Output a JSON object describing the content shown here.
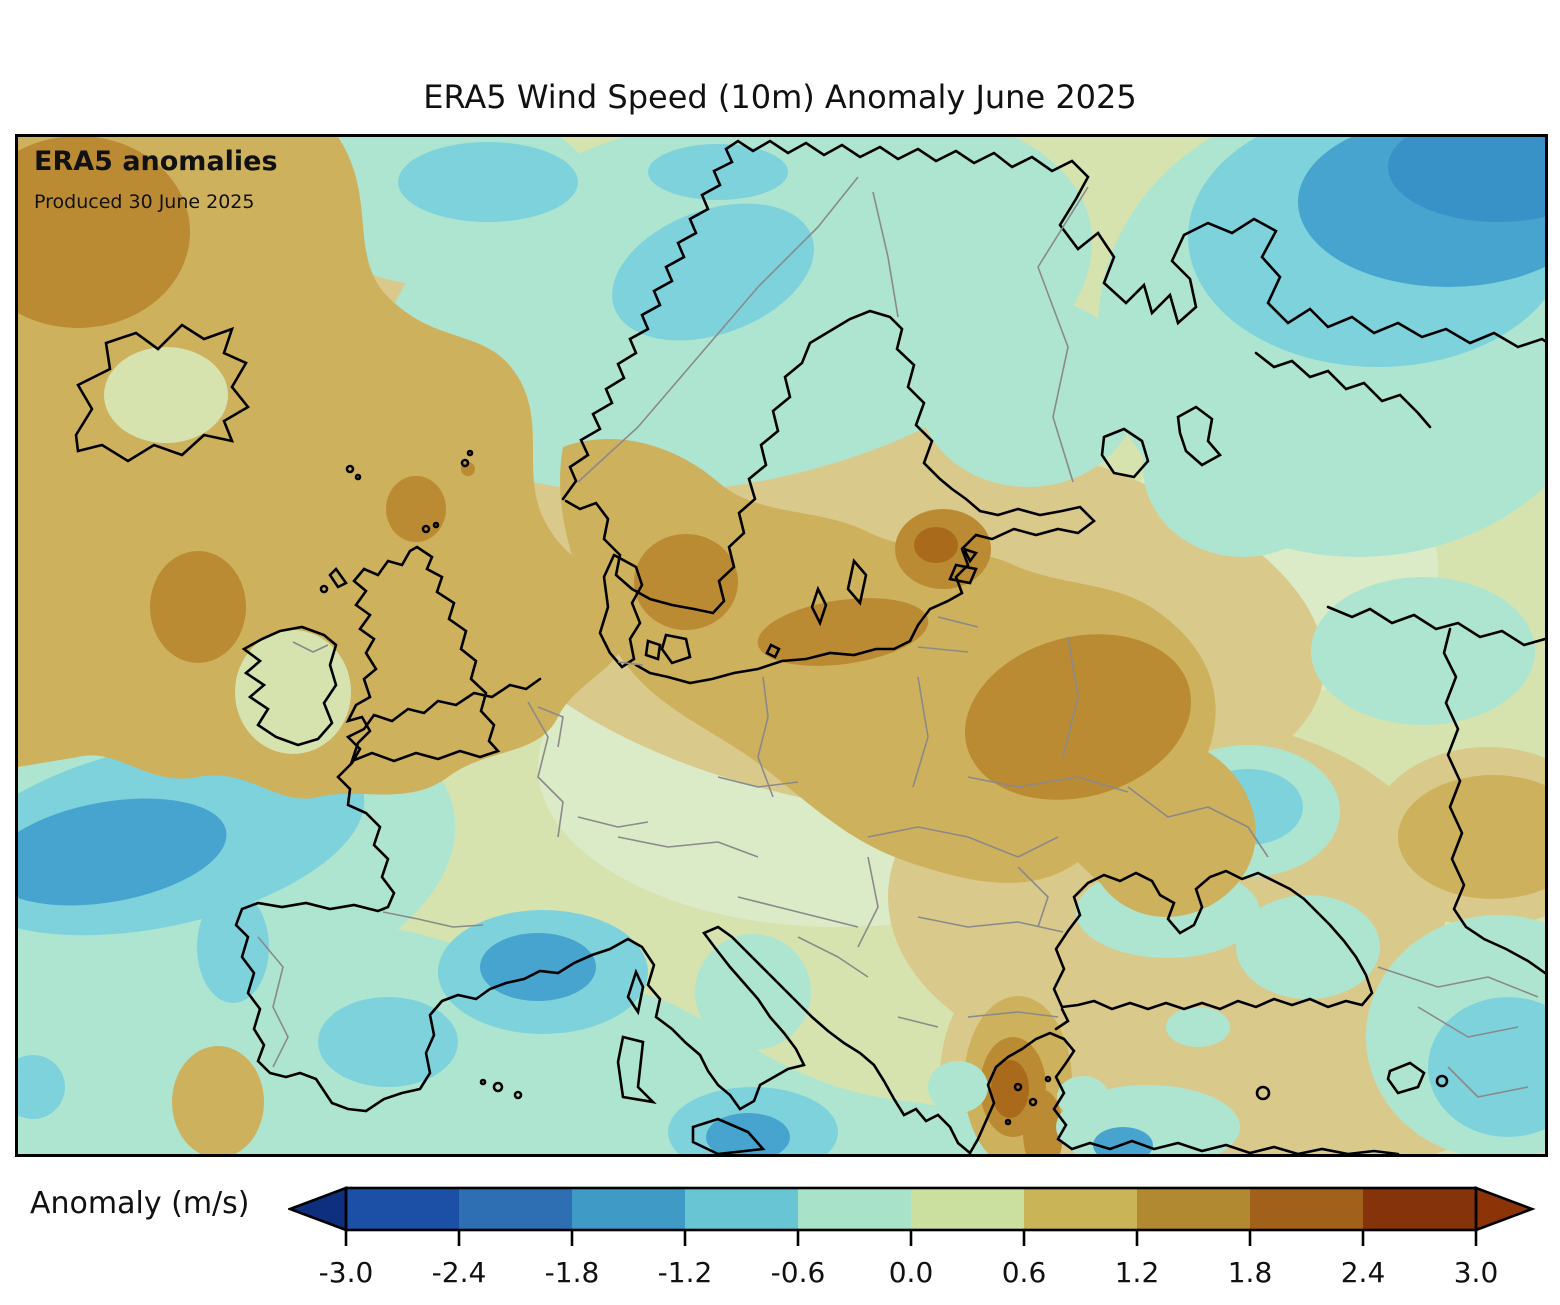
{
  "title": "ERA5 Wind Speed (10m) Anomaly June 2025",
  "map_overlay": {
    "heading": "ERA5 anomalies",
    "subheading": "Produced 30 June 2025"
  },
  "colorbar": {
    "label": "Anomaly (m/s)",
    "ticks": [
      "-3.0",
      "-2.4",
      "-1.8",
      "-1.2",
      "-0.6",
      "0.0",
      "0.6",
      "1.2",
      "1.8",
      "2.4",
      "3.0"
    ],
    "segment_colors": [
      "#1c50a7",
      "#2e6fb4",
      "#3f9bc6",
      "#68c5d3",
      "#a7e2c9",
      "#cbdf9e",
      "#c9b458",
      "#b18931",
      "#a2611a",
      "#84330a"
    ],
    "under_color": "#0d2f7e",
    "over_color": "#8c3408",
    "outline_color": "#000000"
  },
  "palette": {
    "map_background_green": "#d6e3ae",
    "light_green": "#dcebc7",
    "khaki": "#d9ca8c",
    "tan": "#ceb15c",
    "dark_golden": "#bb8b33",
    "brown": "#a96a1c",
    "mint": "#aee5d1",
    "cyan": "#7ed2dc",
    "blue": "#47a4ce",
    "deep_blue": "#3992c7",
    "coastline": "#000000",
    "country_border": "#8a8a8a",
    "frame": "#000000"
  },
  "chart_data": {
    "type": "heatmap",
    "title": "ERA5 Wind Speed (10m) Anomaly June 2025",
    "subtitle": "ERA5 anomalies — Produced 30 June 2025",
    "units": "m/s",
    "colorbar_label": "Anomaly (m/s)",
    "colorbar_range": [
      -3.0,
      3.0
    ],
    "colorbar_tick_step": 0.6,
    "colorbar_ticks": [
      -3.0,
      -2.4,
      -1.8,
      -1.2,
      -0.6,
      0.0,
      0.6,
      1.2,
      1.8,
      2.4,
      3.0
    ],
    "projection": "Europe / North Atlantic regional map, filled contours with coastlines and country borders",
    "legend_position": "bottom horizontal colorbar with under/over arrow extensions",
    "regions": [
      {
        "name": "Northeast Atlantic west of British Isles",
        "approx_anomaly": 1.3
      },
      {
        "name": "Top-left corner (SW of Iceland)",
        "approx_anomaly": 1.6
      },
      {
        "name": "British Isles",
        "approx_anomaly": 0.9
      },
      {
        "name": "Denmark / Kattegat",
        "approx_anomaly": 1.5
      },
      {
        "name": "Southern Baltic coast",
        "approx_anomaly": 1.4
      },
      {
        "name": "Estonia / Gulf of Riga",
        "approx_anomaly": 1.6
      },
      {
        "name": "Belarus / western Russia",
        "approx_anomaly": 1.5
      },
      {
        "name": "Ukraine",
        "approx_anomaly": 1.0
      },
      {
        "name": "Aegean / northern Greece",
        "approx_anomaly": 1.9
      },
      {
        "name": "Volga region (right edge)",
        "approx_anomaly": 1.0
      },
      {
        "name": "Central Europe",
        "approx_anomaly": 0.3
      },
      {
        "name": "Norwegian Sea",
        "approx_anomaly": -0.9
      },
      {
        "name": "Barents Sea (top-right corner)",
        "approx_anomaly": -1.7
      },
      {
        "name": "Bay of Biscay / western France",
        "approx_anomaly": -1.0
      },
      {
        "name": "Iberia interior",
        "approx_anomaly": -0.6
      },
      {
        "name": "Gulf of Lion / NW Mediterranean",
        "approx_anomaly": -1.3
      },
      {
        "name": "Southern Italy / Ionian Sea",
        "approx_anomaly": -1.2
      },
      {
        "name": "Black Sea",
        "approx_anomaly": -0.4
      },
      {
        "name": "Southeast corner (E. Mediterranean coast)",
        "approx_anomaly": -0.8
      }
    ]
  }
}
